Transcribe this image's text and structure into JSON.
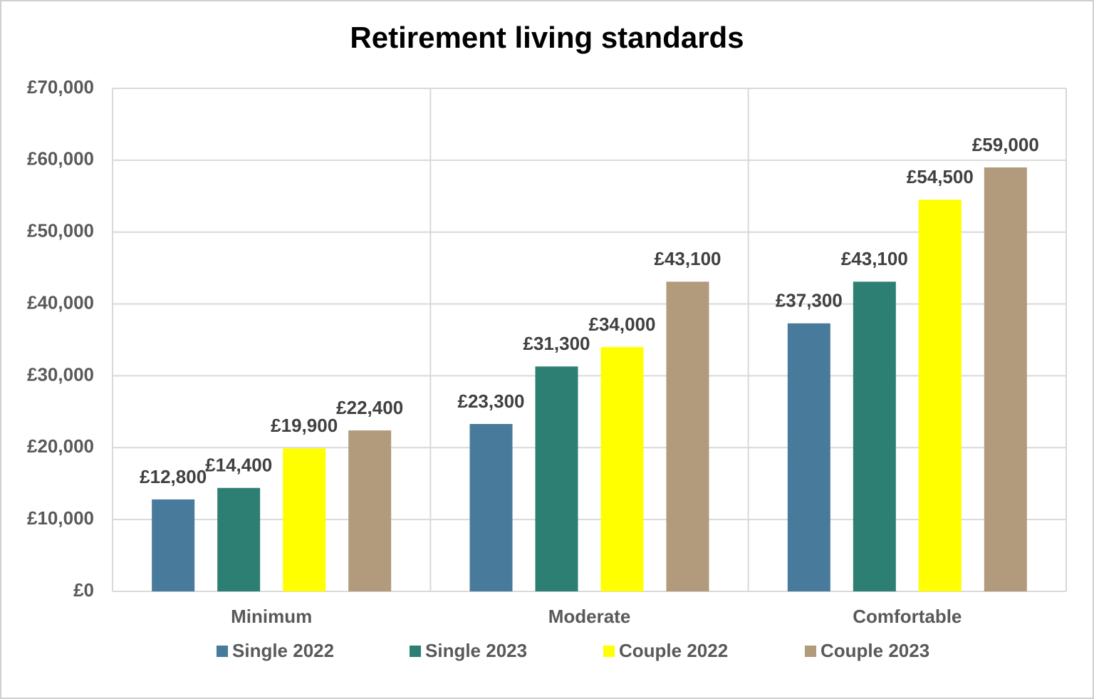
{
  "chart_data": {
    "type": "bar",
    "title": "Retirement living standards",
    "categories": [
      "Minimum",
      "Moderate",
      "Comfortable"
    ],
    "series": [
      {
        "name": "Single 2022",
        "color": "#487a9b",
        "values": [
          12800,
          23300,
          37300
        ],
        "value_labels": [
          "£12,800",
          "£23,300",
          "£37,300"
        ]
      },
      {
        "name": "Single 2023",
        "color": "#2e7f73",
        "values": [
          14400,
          31300,
          43100
        ],
        "value_labels": [
          "£14,400",
          "£31,300",
          "£43,100"
        ]
      },
      {
        "name": "Couple 2022",
        "color": "#ffff00",
        "values": [
          19900,
          34000,
          54500
        ],
        "value_labels": [
          "£19,900",
          "£34,000",
          "£54,500"
        ]
      },
      {
        "name": "Couple 2023",
        "color": "#b19b7c",
        "values": [
          22400,
          43100,
          59000
        ],
        "value_labels": [
          "£22,400",
          "£43,100",
          "£59,000"
        ]
      }
    ],
    "ylim": [
      0,
      70000
    ],
    "yticks": [
      {
        "value": 0,
        "label": "£0"
      },
      {
        "value": 10000,
        "label": "£10,000"
      },
      {
        "value": 20000,
        "label": "£20,000"
      },
      {
        "value": 30000,
        "label": "£30,000"
      },
      {
        "value": 40000,
        "label": "£40,000"
      },
      {
        "value": 50000,
        "label": "£50,000"
      },
      {
        "value": 60000,
        "label": "£60,000"
      },
      {
        "value": 70000,
        "label": "£70,000"
      }
    ],
    "grid": true,
    "legend": "bottom"
  }
}
